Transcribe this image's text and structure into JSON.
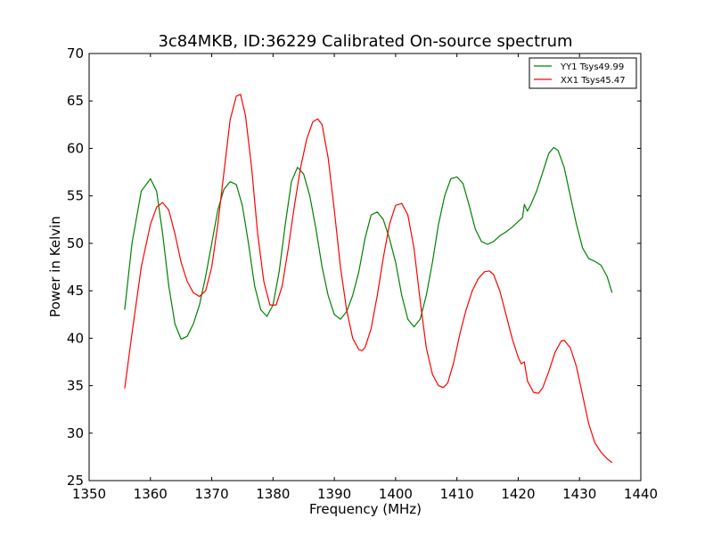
{
  "chart_data": {
    "type": "line",
    "title": "3c84MKB, ID:36229 Calibrated On-source spectrum",
    "xlabel": "Frequency (MHz)",
    "ylabel": "Power in Kelvin",
    "xlim": [
      1350,
      1440
    ],
    "ylim": [
      25,
      70
    ],
    "xticks": [
      1350,
      1360,
      1370,
      1380,
      1390,
      1400,
      1410,
      1420,
      1430,
      1440
    ],
    "yticks": [
      25,
      30,
      35,
      40,
      45,
      50,
      55,
      60,
      65,
      70
    ],
    "grid": false,
    "legend_position": "top-right",
    "series": [
      {
        "name": "YY1 Tsys49.99",
        "color": "#008000",
        "x": [
          1355.8,
          1357,
          1358.5,
          1360,
          1361,
          1362,
          1363,
          1364,
          1365,
          1366,
          1367,
          1368,
          1369,
          1370,
          1371,
          1372,
          1373,
          1374,
          1375,
          1376,
          1377,
          1378,
          1379,
          1380,
          1381,
          1382,
          1383,
          1384,
          1385,
          1386,
          1387,
          1388,
          1389,
          1390,
          1391,
          1392,
          1393,
          1394,
          1395,
          1396,
          1397,
          1398,
          1399,
          1400,
          1401,
          1402,
          1403,
          1404,
          1405,
          1406,
          1407,
          1408,
          1409,
          1410,
          1411,
          1412,
          1413,
          1414,
          1415,
          1416,
          1417,
          1418,
          1419,
          1420,
          1420.7,
          1421,
          1421.5,
          1422,
          1423,
          1424,
          1425,
          1425.8,
          1426.5,
          1427.5,
          1428.5,
          1429.5,
          1430.5,
          1431.5,
          1432.5,
          1433.5,
          1434.5,
          1435.3
        ],
        "y": [
          43.0,
          50.0,
          55.5,
          56.8,
          55.5,
          51.0,
          45.5,
          41.5,
          39.9,
          40.2,
          41.5,
          43.5,
          46.5,
          50.0,
          53.5,
          55.7,
          56.5,
          56.2,
          54.0,
          50.0,
          45.5,
          43.0,
          42.3,
          43.5,
          47.0,
          52.0,
          56.5,
          58.0,
          57.3,
          55.0,
          51.5,
          47.5,
          44.5,
          42.5,
          42.0,
          42.8,
          44.5,
          47.0,
          50.5,
          53.0,
          53.3,
          52.5,
          50.5,
          48.0,
          44.5,
          42.0,
          41.2,
          42.0,
          44.5,
          48.0,
          52.0,
          55.0,
          56.8,
          57.0,
          56.3,
          54.0,
          51.5,
          50.2,
          49.9,
          50.2,
          50.8,
          51.2,
          51.7,
          52.3,
          52.7,
          54.1,
          53.4,
          54.0,
          55.5,
          57.5,
          59.5,
          60.1,
          59.8,
          58.0,
          55.0,
          52.0,
          49.5,
          48.4,
          48.1,
          47.7,
          46.5,
          44.8
        ]
      },
      {
        "name": "XX1 Tsys45.47",
        "color": "#ff0000",
        "x": [
          1355.8,
          1357,
          1358.5,
          1360,
          1361,
          1362,
          1363,
          1364,
          1365,
          1366,
          1367,
          1368,
          1369,
          1370,
          1371,
          1372,
          1373,
          1374,
          1374.7,
          1375.5,
          1376.5,
          1377.5,
          1378.5,
          1379.5,
          1380.5,
          1381.5,
          1382.5,
          1383.5,
          1384.5,
          1385.5,
          1386.5,
          1387.3,
          1388,
          1389,
          1390,
          1391,
          1392,
          1393,
          1394,
          1394.5,
          1395,
          1396,
          1397,
          1398,
          1399,
          1400,
          1401,
          1402,
          1403,
          1404,
          1405,
          1406,
          1407,
          1407.8,
          1408.5,
          1409.5,
          1410.5,
          1411.5,
          1412.5,
          1413.5,
          1414.5,
          1415.3,
          1416,
          1417,
          1418,
          1419,
          1420,
          1420.5,
          1421,
          1421.5,
          1422.5,
          1423.3,
          1424,
          1425,
          1426,
          1427,
          1427.5,
          1428.5,
          1429.5,
          1430.5,
          1431.5,
          1432.5,
          1433.5,
          1434.5,
          1435.3
        ],
        "y": [
          34.7,
          40.5,
          47.5,
          52.0,
          53.8,
          54.3,
          53.5,
          51.0,
          48.0,
          46.0,
          44.8,
          44.4,
          45.0,
          47.5,
          52.0,
          57.5,
          63.0,
          65.5,
          65.7,
          63.5,
          58.0,
          51.0,
          46.0,
          43.5,
          43.5,
          45.5,
          49.5,
          54.0,
          58.0,
          61.0,
          62.8,
          63.1,
          62.5,
          59.0,
          53.5,
          47.5,
          43.0,
          40.0,
          38.8,
          38.7,
          39.0,
          41.0,
          44.5,
          48.5,
          52.0,
          54.0,
          54.2,
          53.0,
          49.5,
          44.0,
          39.0,
          36.2,
          35.0,
          34.8,
          35.3,
          37.5,
          40.5,
          43.0,
          45.0,
          46.3,
          47.0,
          47.1,
          46.7,
          45.0,
          42.5,
          40.0,
          38.0,
          37.3,
          37.5,
          35.5,
          34.3,
          34.2,
          34.8,
          36.5,
          38.5,
          39.7,
          39.8,
          39.0,
          37.0,
          34.0,
          31.0,
          29.0,
          28.0,
          27.3,
          26.9
        ]
      }
    ]
  }
}
